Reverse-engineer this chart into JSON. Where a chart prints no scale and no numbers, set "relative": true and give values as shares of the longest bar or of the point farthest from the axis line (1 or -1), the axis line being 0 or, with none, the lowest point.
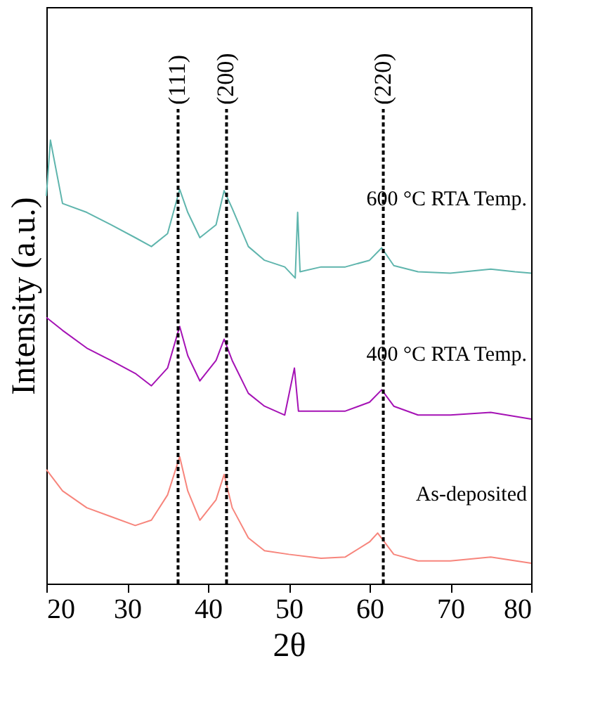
{
  "chart_data": {
    "type": "line",
    "relative": true,
    "xlabel": "2θ",
    "ylabel": "Intensity (a.u.)",
    "xlim": [
      20,
      80
    ],
    "xticks": [
      20,
      30,
      40,
      50,
      60,
      70,
      80
    ],
    "grid": false,
    "tick_labels": "x",
    "annotations": [
      "(111)",
      "(200)",
      "(220)"
    ],
    "series": [
      {
        "name": "600 °C RTA Temp.",
        "color": "#5fb5ad",
        "x": [
          20,
          20.5,
          22,
          25,
          28,
          31,
          33,
          35,
          36.5,
          37.5,
          39,
          41,
          42,
          43,
          45,
          47,
          49.5,
          50.8,
          51.1,
          51.4,
          54,
          57,
          60,
          61.5,
          63,
          66,
          70,
          75,
          78,
          80
        ],
        "values": [
          0.874,
          1.0,
          0.857,
          0.837,
          0.809,
          0.78,
          0.76,
          0.789,
          0.889,
          0.837,
          0.78,
          0.809,
          0.886,
          0.846,
          0.76,
          0.729,
          0.714,
          0.689,
          0.837,
          0.703,
          0.714,
          0.714,
          0.729,
          0.757,
          0.717,
          0.703,
          0.7,
          0.709,
          0.703,
          0.7
        ]
      },
      {
        "name": "400 °C RTA Temp.",
        "color": "#a512b5",
        "x": [
          20,
          22,
          25,
          28,
          31,
          33,
          35,
          36.5,
          37.5,
          39,
          41,
          42,
          43,
          45,
          47,
          49.5,
          50.7,
          51.2,
          54,
          57,
          60,
          61.5,
          63,
          66,
          70,
          75,
          80
        ],
        "values": [
          0.6,
          0.571,
          0.531,
          0.503,
          0.474,
          0.446,
          0.486,
          0.58,
          0.514,
          0.457,
          0.503,
          0.551,
          0.503,
          0.429,
          0.4,
          0.38,
          0.486,
          0.389,
          0.389,
          0.389,
          0.409,
          0.437,
          0.4,
          0.38,
          0.38,
          0.386,
          0.371
        ]
      },
      {
        "name": "As-deposited",
        "color": "#f7857c",
        "x": [
          20,
          22,
          25,
          28,
          31,
          33,
          35,
          36.5,
          37.5,
          39,
          41,
          42,
          43,
          45,
          47,
          50,
          54,
          57,
          60,
          61,
          63,
          66,
          70,
          75,
          80
        ],
        "values": [
          0.257,
          0.209,
          0.171,
          0.151,
          0.131,
          0.143,
          0.2,
          0.286,
          0.209,
          0.143,
          0.189,
          0.246,
          0.171,
          0.103,
          0.074,
          0.066,
          0.057,
          0.06,
          0.094,
          0.114,
          0.066,
          0.051,
          0.051,
          0.06,
          0.046
        ]
      }
    ],
    "ref_lines": [
      {
        "axis": "x",
        "value": 36.3,
        "line_style": "dotted",
        "color": "#000000"
      },
      {
        "axis": "x",
        "value": 42.3,
        "line_style": "dotted",
        "color": "#000000"
      },
      {
        "axis": "x",
        "value": 61.7,
        "line_style": "dotted",
        "color": "#000000"
      }
    ]
  }
}
